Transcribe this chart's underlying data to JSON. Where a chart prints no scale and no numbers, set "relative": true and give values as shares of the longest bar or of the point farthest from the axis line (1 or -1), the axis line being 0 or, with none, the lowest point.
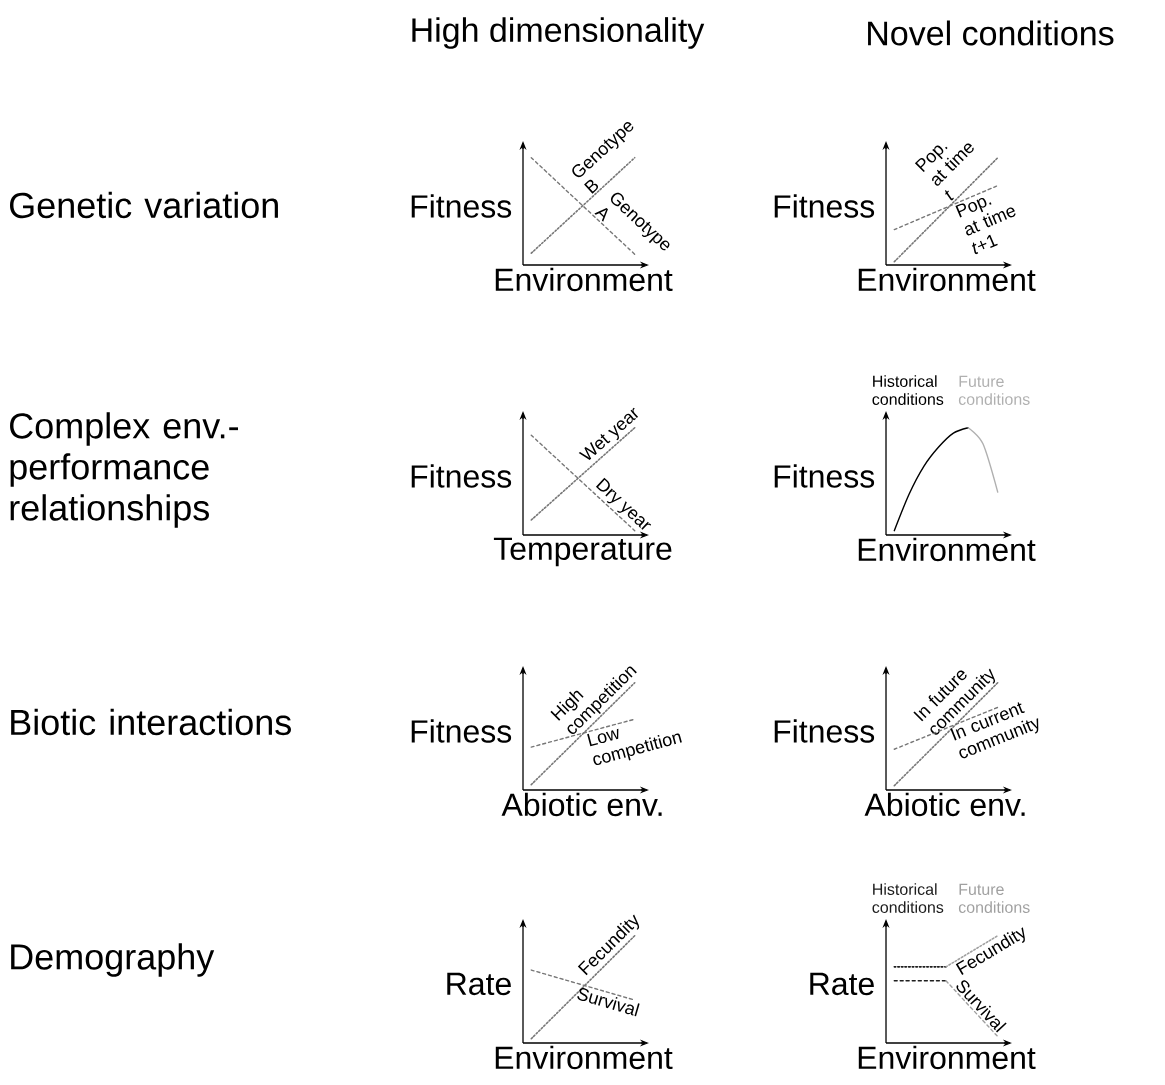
{
  "chart_data": [
    {
      "type": "line",
      "relative": true,
      "xlabel": "Environment",
      "ylabel": "Fitness",
      "categories": [
        null,
        null
      ],
      "series": [
        {
          "name": "Genotype B",
          "color": "#777777",
          "line_style": "dotted",
          "values": [
            0.11,
            1.0
          ]
        },
        {
          "name": "Genotype A",
          "color": "#777777",
          "line_style": "dashed",
          "values": [
            1.0,
            0.1
          ]
        }
      ]
    },
    {
      "type": "line",
      "relative": true,
      "xlabel": "Environment",
      "ylabel": "Fitness",
      "categories": [
        null,
        null
      ],
      "series": [
        {
          "name": "Pop. at time *t*",
          "color": "#777777",
          "line_style": "dotted",
          "values": [
            0.03,
            1.0
          ]
        },
        {
          "name": "Pop. at time *t*+1",
          "color": "#777777",
          "line_style": "dashed",
          "values": [
            0.33,
            0.74
          ]
        }
      ]
    },
    {
      "type": "line",
      "relative": true,
      "xlabel": "Temperature",
      "ylabel": "Fitness",
      "categories": [
        null,
        null
      ],
      "series": [
        {
          "name": "Wet year",
          "color": "#777777",
          "line_style": "dotted",
          "values": [
            0.14,
            1.0
          ]
        },
        {
          "name": "Dry year",
          "color": "#777777",
          "line_style": "dashed",
          "values": [
            0.93,
            0.04
          ]
        }
      ]
    },
    {
      "type": "line",
      "relative": true,
      "xlabel": "Environment",
      "ylabel": "Fitness",
      "categories": [
        null,
        null,
        null,
        null,
        null,
        null,
        null,
        null
      ],
      "annotations": [
        "Historical conditions",
        "Future conditions"
      ],
      "series": [
        {
          "color": "#000000",
          "line_style": "solid",
          "values": [
            0.04,
            0.38,
            0.64,
            0.82,
            0.95,
            1.0,
            null,
            null
          ]
        },
        {
          "color": "#b0b0b0",
          "line_style": "solid",
          "values": [
            null,
            null,
            null,
            null,
            null,
            1.0,
            0.85,
            0.4
          ]
        }
      ]
    },
    {
      "type": "line",
      "relative": true,
      "xlabel": "Abiotic env.",
      "ylabel": "Fitness",
      "categories": [
        null,
        null
      ],
      "series": [
        {
          "name": "High competition",
          "color": "#777777",
          "line_style": "dotted",
          "values": [
            0.05,
            1.0
          ]
        },
        {
          "name": "Low competition",
          "color": "#777777",
          "line_style": "dashed",
          "values": [
            0.4,
            0.66
          ]
        }
      ]
    },
    {
      "type": "line",
      "relative": true,
      "xlabel": "Abiotic env.",
      "ylabel": "Fitness",
      "categories": [
        null,
        null
      ],
      "series": [
        {
          "name": "In future community",
          "color": "#777777",
          "line_style": "dotted",
          "values": [
            0.04,
            1.0
          ]
        },
        {
          "name": "In current community",
          "color": "#777777",
          "line_style": "dashed",
          "values": [
            0.38,
            0.77
          ]
        }
      ]
    },
    {
      "type": "line",
      "relative": true,
      "xlabel": "Environment",
      "ylabel": "Rate",
      "categories": [
        null,
        null
      ],
      "series": [
        {
          "name": "Fecundity",
          "color": "#777777",
          "line_style": "dotted",
          "values": [
            0.04,
            1.0
          ]
        },
        {
          "name": "Survival",
          "color": "#777777",
          "line_style": "dashed",
          "values": [
            0.68,
            0.4
          ]
        }
      ]
    },
    {
      "type": "line",
      "relative": true,
      "xlabel": "Environment",
      "ylabel": "Rate",
      "categories": [
        null,
        null,
        null
      ],
      "annotations": [
        "Historical conditions",
        "Future conditions"
      ],
      "series": [
        {
          "color": "#1e1e1e",
          "line_style": "dotted",
          "values": [
            0.71,
            0.71,
            null
          ]
        },
        {
          "name": "Fecundity",
          "color": "#a0a0a0",
          "line_style": "dotted",
          "values": [
            null,
            0.71,
            1.0
          ]
        },
        {
          "color": "#1e1e1e",
          "line_style": "dashed",
          "values": [
            0.58,
            0.58,
            null
          ]
        },
        {
          "name": "Survival",
          "color": "#a0a0a0",
          "line_style": "dashed",
          "values": [
            null,
            0.58,
            0.06
          ]
        }
      ]
    },
    {
      "type": "other",
      "annotations": [
        "High dimensionality",
        "Novel conditions",
        "Genetic variation",
        "Complex env.-performance relationships",
        "Biotic interactions",
        "Demography"
      ]
    }
  ]
}
